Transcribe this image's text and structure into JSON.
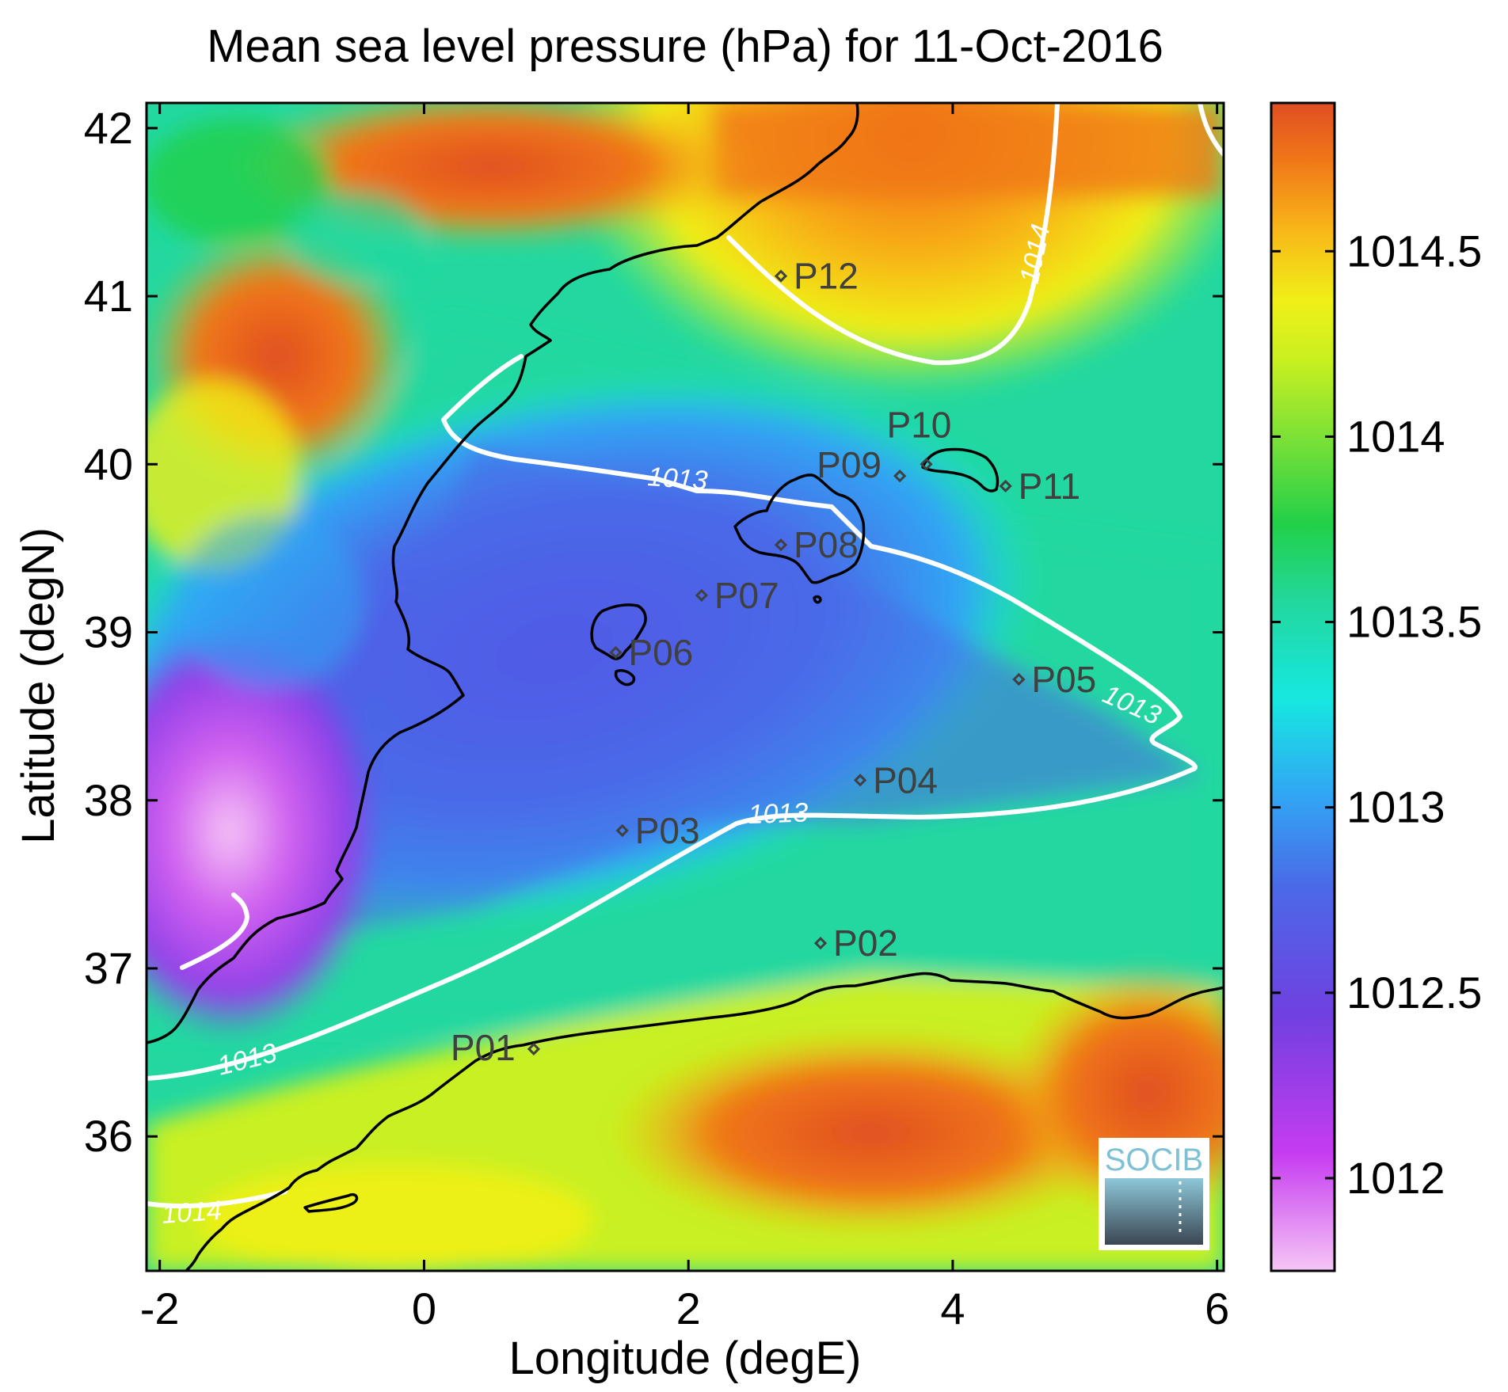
{
  "chart_data": {
    "type": "heatmap",
    "title": "Mean sea level pressure (hPa) for 11-Oct-2016",
    "xlabel": "Longitude (degE)",
    "ylabel": "Latitude (degN)",
    "xlim": [
      -2.1,
      6.05
    ],
    "ylim": [
      35.2,
      42.15
    ],
    "x_ticks": [
      -2,
      0,
      2,
      4,
      6
    ],
    "x_tick_labels": [
      "-2",
      "0",
      "2",
      "4",
      "6"
    ],
    "y_ticks": [
      36,
      37,
      38,
      39,
      40,
      41,
      42
    ],
    "y_tick_labels": [
      "36",
      "37",
      "38",
      "39",
      "40",
      "41",
      "42"
    ],
    "colorbar": {
      "range": [
        1011.75,
        1014.9
      ],
      "ticks": [
        1012,
        1012.5,
        1013,
        1013.5,
        1014,
        1014.5
      ],
      "tick_labels": [
        "1012",
        "1012.5",
        "1013",
        "1013.5",
        "1014",
        "1014.5"
      ],
      "colormap": [
        "#f6c6f6",
        "#c63cf0",
        "#7040e0",
        "#4a6ae8",
        "#30a8f4",
        "#16e8e0",
        "#22d8a0",
        "#22d048",
        "#78e038",
        "#c8f020",
        "#f0f018",
        "#f8b818",
        "#f07818",
        "#e04e22"
      ]
    },
    "contours": [
      {
        "level": "1013",
        "label": "1013"
      },
      {
        "level": "1014",
        "label": "1014"
      }
    ],
    "stations": [
      {
        "name": "P01",
        "lon": 0.83,
        "lat": 36.52
      },
      {
        "name": "P02",
        "lon": 3.0,
        "lat": 37.15
      },
      {
        "name": "P03",
        "lon": 1.5,
        "lat": 37.82
      },
      {
        "name": "P04",
        "lon": 3.3,
        "lat": 38.12
      },
      {
        "name": "P05",
        "lon": 4.5,
        "lat": 38.72
      },
      {
        "name": "P06",
        "lon": 1.45,
        "lat": 38.88
      },
      {
        "name": "P07",
        "lon": 2.1,
        "lat": 39.22
      },
      {
        "name": "P08",
        "lon": 2.7,
        "lat": 39.52
      },
      {
        "name": "P09",
        "lon": 3.6,
        "lat": 39.93
      },
      {
        "name": "P10",
        "lon": 3.8,
        "lat": 40.0
      },
      {
        "name": "P11",
        "lon": 4.4,
        "lat": 39.87
      },
      {
        "name": "P12",
        "lon": 2.7,
        "lat": 41.12
      }
    ]
  },
  "logo": {
    "text": "SOCIB"
  }
}
